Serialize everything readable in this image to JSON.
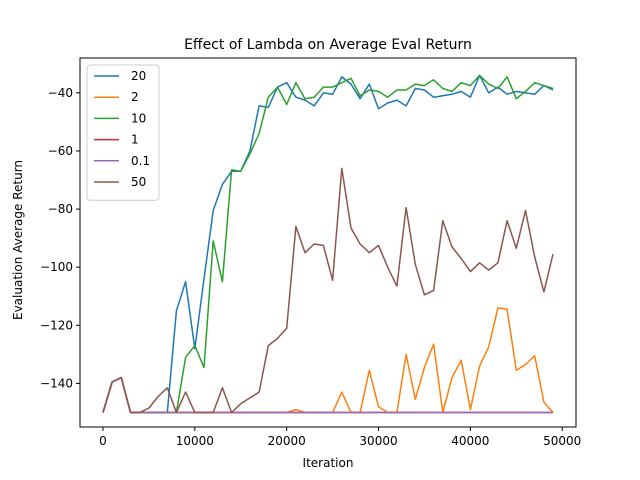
{
  "chart_data": {
    "type": "line",
    "title": "Effect of Lambda on Average Eval Return",
    "xlabel": "Iteration",
    "ylabel": "Evaluation Average Return",
    "xlim": [
      -2500,
      51500
    ],
    "ylim": [
      -155,
      -28
    ],
    "xticks": [
      0,
      10000,
      20000,
      30000,
      40000,
      50000
    ],
    "yticks": [
      -140,
      -120,
      -100,
      -80,
      -60,
      -40
    ],
    "grid": false,
    "legend_position": "top-left",
    "x": [
      0,
      1000,
      2000,
      3000,
      4000,
      5000,
      6000,
      7000,
      8000,
      9000,
      10000,
      11000,
      12000,
      13000,
      14000,
      15000,
      16000,
      17000,
      18000,
      19000,
      20000,
      21000,
      22000,
      23000,
      24000,
      25000,
      26000,
      27000,
      28000,
      29000,
      30000,
      31000,
      32000,
      33000,
      34000,
      35000,
      36000,
      37000,
      38000,
      39000,
      40000,
      41000,
      42000,
      43000,
      44000,
      45000,
      46000,
      47000,
      48000,
      49000
    ],
    "series": [
      {
        "name": "20",
        "color": "#1f77b4",
        "values": [
          -150,
          -139.5,
          -138,
          -150,
          -150,
          -150,
          -150,
          -150,
          -115,
          -105,
          -128,
          -104,
          -80.5,
          -71.5,
          -67,
          -67,
          -60,
          -44.5,
          -45,
          -38,
          -36.5,
          -41.5,
          -42.5,
          -44.5,
          -40,
          -40.5,
          -34.5,
          -37,
          -42,
          -37,
          -45.5,
          -43.5,
          -42.5,
          -44.5,
          -38.5,
          -39,
          -41.5,
          -41,
          -40.5,
          -39.5,
          -41.5,
          -34,
          -40,
          -38,
          -40.5,
          -39.5,
          -40,
          -40.5,
          -37.5,
          -39
        ]
      },
      {
        "name": "2",
        "color": "#ff7f0e",
        "values": [
          -150,
          -139.5,
          -138,
          -150,
          -150,
          -150,
          -150,
          -150,
          -150,
          -150,
          -150,
          -150,
          -150,
          -150,
          -150,
          -150,
          -150,
          -150,
          -150,
          -150,
          -150,
          -149,
          -150,
          -150,
          -150,
          -150,
          -143,
          -150,
          -150,
          -135.5,
          -148,
          -150,
          -150,
          -130,
          -145.5,
          -134.5,
          -126.5,
          -150,
          -138,
          -132,
          -149,
          -134,
          -127.5,
          -114,
          -114.5,
          -135.5,
          -133.5,
          -130.5,
          -146.5,
          -150
        ]
      },
      {
        "name": "10",
        "color": "#2ca02c",
        "values": [
          -150,
          -139.5,
          -138,
          -150,
          -150,
          -150,
          -150,
          -150,
          -150,
          -131,
          -127,
          -134.5,
          -91,
          -105,
          -66.5,
          -67,
          -61,
          -54,
          -41.5,
          -38,
          -44,
          -36.5,
          -42,
          -41.5,
          -38,
          -38,
          -36.5,
          -35,
          -41,
          -39,
          -39.5,
          -41.5,
          -39,
          -39,
          -37,
          -37.5,
          -35.5,
          -38.5,
          -39.5,
          -36.5,
          -37.5,
          -34,
          -37,
          -38.5,
          -34.5,
          -42,
          -39.5,
          -36.5,
          -37.5,
          -38.5
        ]
      },
      {
        "name": "1",
        "color": "#d62728",
        "values": [
          -150,
          -139.5,
          -138,
          -150,
          -150,
          -150,
          -150,
          -150,
          -150,
          -150,
          -150,
          -150,
          -150,
          -150,
          -150,
          -150,
          -150,
          -150,
          -150,
          -150,
          -150,
          -150,
          -150,
          -150,
          -150,
          -150,
          -150,
          -150,
          -150,
          -150,
          -150,
          -150,
          -150,
          -150,
          -150,
          -150,
          -150,
          -150,
          -150,
          -150,
          -150,
          -150,
          -150,
          -150,
          -150,
          -150,
          -150,
          -150,
          -150,
          -150
        ]
      },
      {
        "name": "0.1",
        "color": "#9467bd",
        "values": [
          -150,
          -139.5,
          -138,
          -150,
          -150,
          -150,
          -150,
          -150,
          -150,
          -150,
          -150,
          -150,
          -150,
          -150,
          -150,
          -150,
          -150,
          -150,
          -150,
          -150,
          -150,
          -150,
          -150,
          -150,
          -150,
          -150,
          -150,
          -150,
          -150,
          -150,
          -150,
          -150,
          -150,
          -150,
          -150,
          -150,
          -150,
          -150,
          -150,
          -150,
          -150,
          -150,
          -150,
          -150,
          -150,
          -150,
          -150,
          -150,
          -150,
          -150
        ]
      },
      {
        "name": "50",
        "color": "#8c564b",
        "values": [
          -150,
          -139.5,
          -138,
          -150,
          -150,
          -148.5,
          -144.5,
          -141.5,
          -150,
          -143,
          -150,
          -150,
          -150,
          -141.5,
          -150,
          -147,
          -145,
          -143,
          -127,
          -124.5,
          -121,
          -86,
          -95,
          -92,
          -92.5,
          -104.5,
          -66,
          -86.5,
          -92,
          -95,
          -92.5,
          -100,
          -106.5,
          -79.5,
          -99,
          -109.5,
          -108,
          -84,
          -93,
          -97,
          -101.5,
          -98.5,
          -101,
          -98.5,
          -84,
          -93.5,
          -80.5,
          -96.5,
          -108.5,
          -95.5
        ]
      }
    ]
  }
}
